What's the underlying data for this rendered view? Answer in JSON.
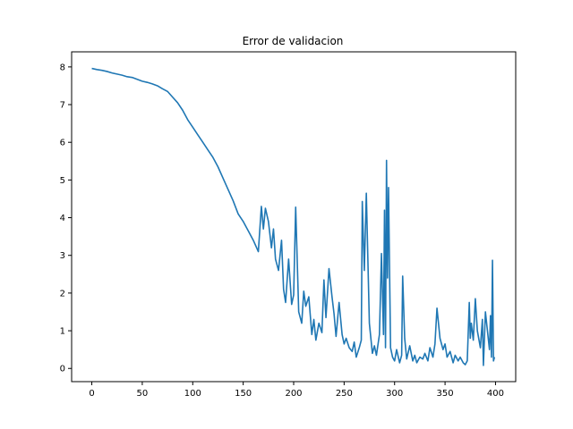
{
  "chart_data": {
    "type": "line",
    "title": "Error de validacion",
    "xlabel": "",
    "ylabel": "",
    "xlim": [
      -20,
      420
    ],
    "ylim": [
      -0.35,
      8.4
    ],
    "xticks": [
      0,
      50,
      100,
      150,
      200,
      250,
      300,
      350,
      400
    ],
    "yticks": [
      0,
      1,
      2,
      3,
      4,
      5,
      6,
      7,
      8
    ],
    "grid": false,
    "legend": "none",
    "colors": {
      "line": "#1f77b4",
      "axes": "#000000",
      "background": "#ffffff"
    },
    "series": [
      {
        "x": [
          0,
          5,
          10,
          15,
          20,
          25,
          30,
          35,
          40,
          45,
          50,
          55,
          60,
          65,
          70,
          75,
          80,
          85,
          90,
          95,
          100,
          105,
          110,
          115,
          120,
          125,
          130,
          135,
          140,
          145,
          150,
          155,
          160,
          165,
          168,
          170,
          172,
          175,
          178,
          180,
          182,
          185,
          188,
          190,
          192,
          195,
          198,
          200,
          202,
          205,
          208,
          210,
          212,
          215,
          218,
          220,
          222,
          225,
          228,
          230,
          232,
          235,
          238,
          240,
          242,
          245,
          248,
          250,
          252,
          255,
          258,
          260,
          262,
          265,
          267,
          268,
          270,
          272,
          275,
          278,
          280,
          282,
          285,
          287,
          289,
          290,
          291,
          292,
          293,
          294,
          296,
          298,
          300,
          302,
          305,
          307,
          308,
          310,
          312,
          315,
          318,
          320,
          322,
          325,
          328,
          330,
          333,
          335,
          338,
          340,
          342,
          345,
          348,
          350,
          352,
          355,
          358,
          360,
          363,
          365,
          368,
          370,
          372,
          374,
          375,
          376,
          378,
          380,
          382,
          385,
          387,
          388,
          390,
          392,
          394,
          395,
          396,
          397,
          398,
          399
        ],
        "y": [
          7.96,
          7.93,
          7.91,
          7.88,
          7.84,
          7.81,
          7.78,
          7.74,
          7.72,
          7.67,
          7.62,
          7.59,
          7.55,
          7.5,
          7.42,
          7.35,
          7.2,
          7.05,
          6.85,
          6.6,
          6.4,
          6.2,
          6.0,
          5.8,
          5.6,
          5.35,
          5.05,
          4.75,
          4.45,
          4.1,
          3.9,
          3.65,
          3.4,
          3.1,
          4.3,
          3.7,
          4.25,
          3.9,
          3.2,
          3.7,
          2.9,
          2.6,
          3.4,
          2.1,
          1.75,
          2.9,
          1.7,
          1.95,
          4.28,
          1.5,
          1.2,
          2.05,
          1.65,
          1.9,
          0.9,
          1.3,
          0.75,
          1.2,
          0.95,
          2.35,
          1.35,
          2.65,
          1.9,
          1.45,
          0.85,
          1.75,
          0.9,
          0.65,
          0.8,
          0.55,
          0.45,
          0.7,
          0.3,
          0.55,
          0.75,
          4.43,
          2.6,
          4.65,
          1.2,
          0.4,
          0.6,
          0.35,
          0.9,
          3.05,
          0.9,
          4.2,
          0.55,
          5.52,
          2.4,
          4.8,
          0.55,
          0.3,
          0.2,
          0.5,
          0.15,
          0.35,
          2.45,
          0.8,
          0.25,
          0.6,
          0.2,
          0.35,
          0.15,
          0.3,
          0.25,
          0.4,
          0.2,
          0.55,
          0.3,
          0.65,
          1.6,
          0.8,
          0.5,
          0.65,
          0.3,
          0.45,
          0.15,
          0.35,
          0.2,
          0.3,
          0.15,
          0.1,
          0.2,
          1.75,
          0.8,
          1.2,
          0.75,
          1.85,
          1.0,
          0.55,
          1.3,
          0.08,
          1.5,
          1.0,
          0.5,
          1.4,
          0.3,
          2.87,
          0.2,
          0.3
        ]
      }
    ]
  }
}
